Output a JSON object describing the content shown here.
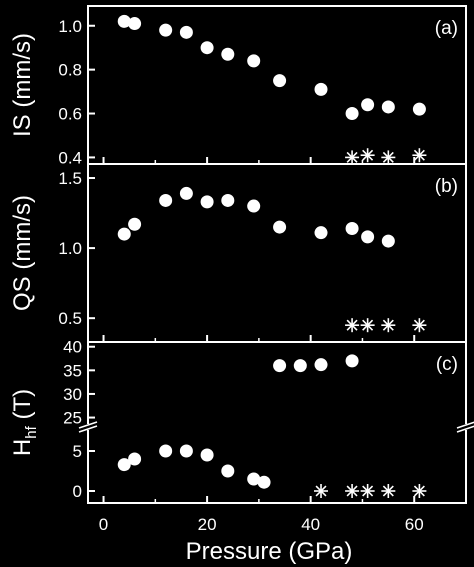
{
  "chart_data": [
    {
      "type": "scatter",
      "panel_label": "(a)",
      "ylabel": "IS (mm/s)",
      "ylim": [
        0.37,
        1.09
      ],
      "yticks": [
        "0.4",
        "0.6",
        "0.8",
        "1.0"
      ],
      "ytick_values": [
        0.4,
        0.6,
        0.8,
        1.0
      ],
      "series": [
        {
          "marker": "circle",
          "x": [
            4,
            6,
            12,
            16,
            20,
            24,
            29,
            34,
            42,
            48,
            51,
            55,
            61
          ],
          "y": [
            1.02,
            1.01,
            0.98,
            0.97,
            0.9,
            0.87,
            0.84,
            0.75,
            0.71,
            0.6,
            0.64,
            0.63,
            0.62
          ]
        },
        {
          "marker": "asterisk",
          "x": [
            48,
            51,
            55,
            61
          ],
          "y": [
            0.4,
            0.41,
            0.4,
            0.41
          ]
        }
      ]
    },
    {
      "type": "scatter",
      "panel_label": "(b)",
      "ylabel": "QS (mm/s)",
      "ylim": [
        0.33,
        1.6
      ],
      "yticks": [
        "0.5",
        "1.0",
        "1.5"
      ],
      "ytick_values": [
        0.5,
        1.0,
        1.5
      ],
      "series": [
        {
          "marker": "circle",
          "x": [
            4,
            6,
            12,
            16,
            20,
            24,
            29,
            34,
            42,
            48,
            51,
            55
          ],
          "y": [
            1.1,
            1.17,
            1.34,
            1.39,
            1.33,
            1.34,
            1.3,
            1.15,
            1.11,
            1.14,
            1.08,
            1.05
          ]
        },
        {
          "marker": "asterisk",
          "x": [
            48,
            51,
            55,
            61
          ],
          "y": [
            0.45,
            0.45,
            0.45,
            0.45
          ]
        }
      ]
    },
    {
      "type": "scatter",
      "panel_label": "(c)",
      "ylabel": "H",
      "ylabel_sub": "hf",
      "ylabel_unit": "(T)",
      "broken_axis": true,
      "ylim_lower": [
        -1.5,
        8
      ],
      "ylim_upper": [
        23,
        41
      ],
      "yticks": [
        "0",
        "5",
        "25",
        "30",
        "35",
        "40"
      ],
      "ytick_values": [
        0,
        5,
        25,
        30,
        35,
        40
      ],
      "series": [
        {
          "marker": "circle",
          "x": [
            4,
            6,
            12,
            16,
            20,
            24,
            29,
            31,
            34,
            38,
            42,
            48
          ],
          "y": [
            3.3,
            4.0,
            5.0,
            5.0,
            4.5,
            2.5,
            1.5,
            1.1,
            36.0,
            36.0,
            36.2,
            37.0
          ]
        },
        {
          "marker": "asterisk",
          "x": [
            42,
            48,
            51,
            55,
            61
          ],
          "y": [
            0,
            0,
            0,
            0,
            0
          ]
        }
      ]
    }
  ],
  "x_axis": {
    "label": "Pressure (GPa)",
    "xlim": [
      -3,
      70
    ],
    "ticks": [
      "0",
      "20",
      "40",
      "60"
    ],
    "tick_values": [
      0,
      20,
      40,
      60
    ]
  }
}
